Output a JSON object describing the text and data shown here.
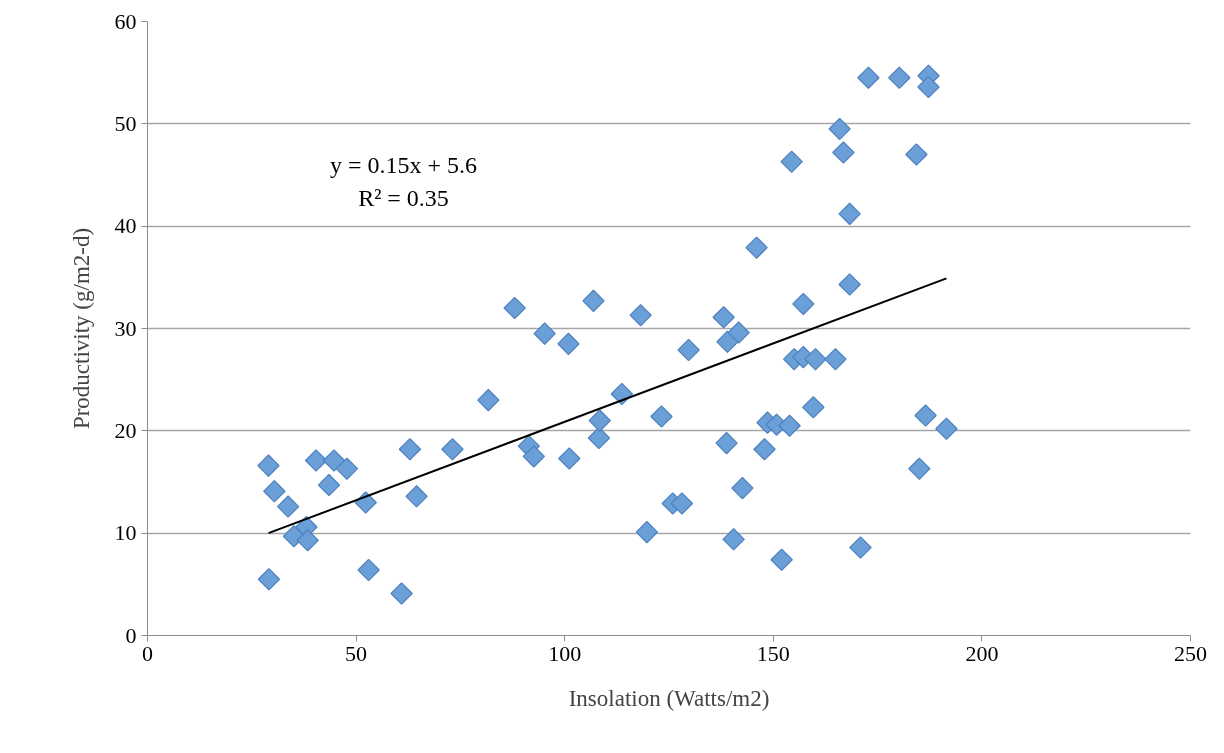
{
  "chart_data": {
    "type": "scatter",
    "xlabel": "Insolation (Watts/m2)",
    "ylabel": "Productivity (g/m2-d)",
    "xlim": [
      0,
      250
    ],
    "xticks": [
      0,
      50,
      100,
      150,
      200,
      250
    ],
    "ylim": [
      0,
      60
    ],
    "yticks": [
      0,
      10,
      20,
      30,
      40,
      50,
      60
    ],
    "grid": "y",
    "marker": "diamond",
    "annotations": [
      "y = 0.15x + 5.6",
      "R² = 0.35"
    ],
    "series": [
      {
        "color": "#6a9fd8",
        "x": [
          29.0,
          29.1,
          30.4,
          33.7,
          35.1,
          38.1,
          38.4,
          40.4,
          43.5,
          44.7,
          47.8,
          52.3,
          53.0,
          60.9,
          62.9,
          64.5,
          73.1,
          81.7,
          88.0,
          91.4,
          92.6,
          95.2,
          100.9,
          101.1,
          106.9,
          108.2,
          108.4,
          113.7,
          118.2,
          119.7,
          123.2,
          125.9,
          128.1,
          129.7,
          138.1,
          138.8,
          139.0,
          140.5,
          141.7,
          142.6,
          146.0,
          147.9,
          148.6,
          150.8,
          152.0,
          153.9,
          154.4,
          155.0,
          157.2,
          157.2,
          159.6,
          160.1,
          164.9,
          165.9,
          166.8,
          168.3,
          168.3,
          170.9,
          172.8,
          180.2,
          184.3,
          185.0,
          186.5,
          187.2,
          187.2,
          191.5
        ],
        "values": [
          16.6,
          5.5,
          14.1,
          12.6,
          9.7,
          10.6,
          9.3,
          17.1,
          14.7,
          17.1,
          16.3,
          13.0,
          6.4,
          4.1,
          18.2,
          13.6,
          18.2,
          23.0,
          32.0,
          18.5,
          17.5,
          29.5,
          28.5,
          17.3,
          32.7,
          19.3,
          21.0,
          23.6,
          31.3,
          10.1,
          21.4,
          12.9,
          12.9,
          27.9,
          31.1,
          18.8,
          28.7,
          9.4,
          29.6,
          14.4,
          37.9,
          18.2,
          20.8,
          20.6,
          7.4,
          20.5,
          46.3,
          27.0,
          32.4,
          27.2,
          22.3,
          27.0,
          27.0,
          49.5,
          47.2,
          41.2,
          34.3,
          8.6,
          54.5,
          54.5,
          47.0,
          16.3,
          21.5,
          54.7,
          53.6,
          20.2
        ]
      },
      {
        "type": "line",
        "color": "#000000",
        "marker": "none",
        "line_style": "solid",
        "x": [
          29.0,
          191.5
        ],
        "values": [
          10.0,
          34.9
        ]
      }
    ]
  }
}
